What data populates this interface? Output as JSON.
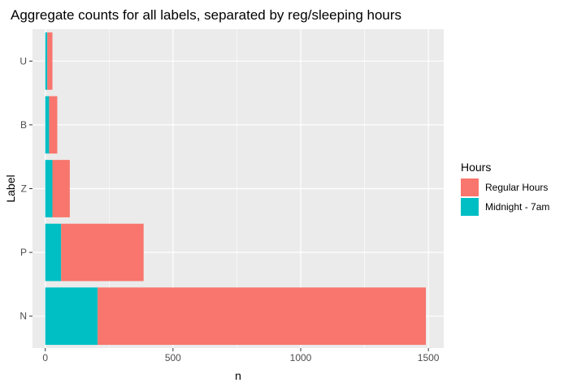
{
  "chart_data": {
    "type": "bar",
    "orientation": "horizontal",
    "stacked": true,
    "title": "Aggregate counts for all labels, separated by reg/sleeping hours",
    "xlabel": "n",
    "ylabel": "Label",
    "categories": [
      "N",
      "P",
      "Z",
      "B",
      "U"
    ],
    "series": [
      {
        "name": "Midnight - 7am",
        "values": [
          205,
          62,
          28,
          15,
          8
        ],
        "color": "#00BFC4"
      },
      {
        "name": "Regular Hours",
        "values": [
          1285,
          323,
          68,
          32,
          20
        ],
        "color": "#F8766D"
      }
    ],
    "xlim": [
      -50,
      1560
    ],
    "xticks": [
      0,
      500,
      1000,
      1500
    ],
    "grid": true,
    "panel_background": "#EBEBEB",
    "legend": {
      "title": "Hours",
      "position": "right",
      "entries": [
        "Regular Hours",
        "Midnight - 7am"
      ]
    }
  }
}
